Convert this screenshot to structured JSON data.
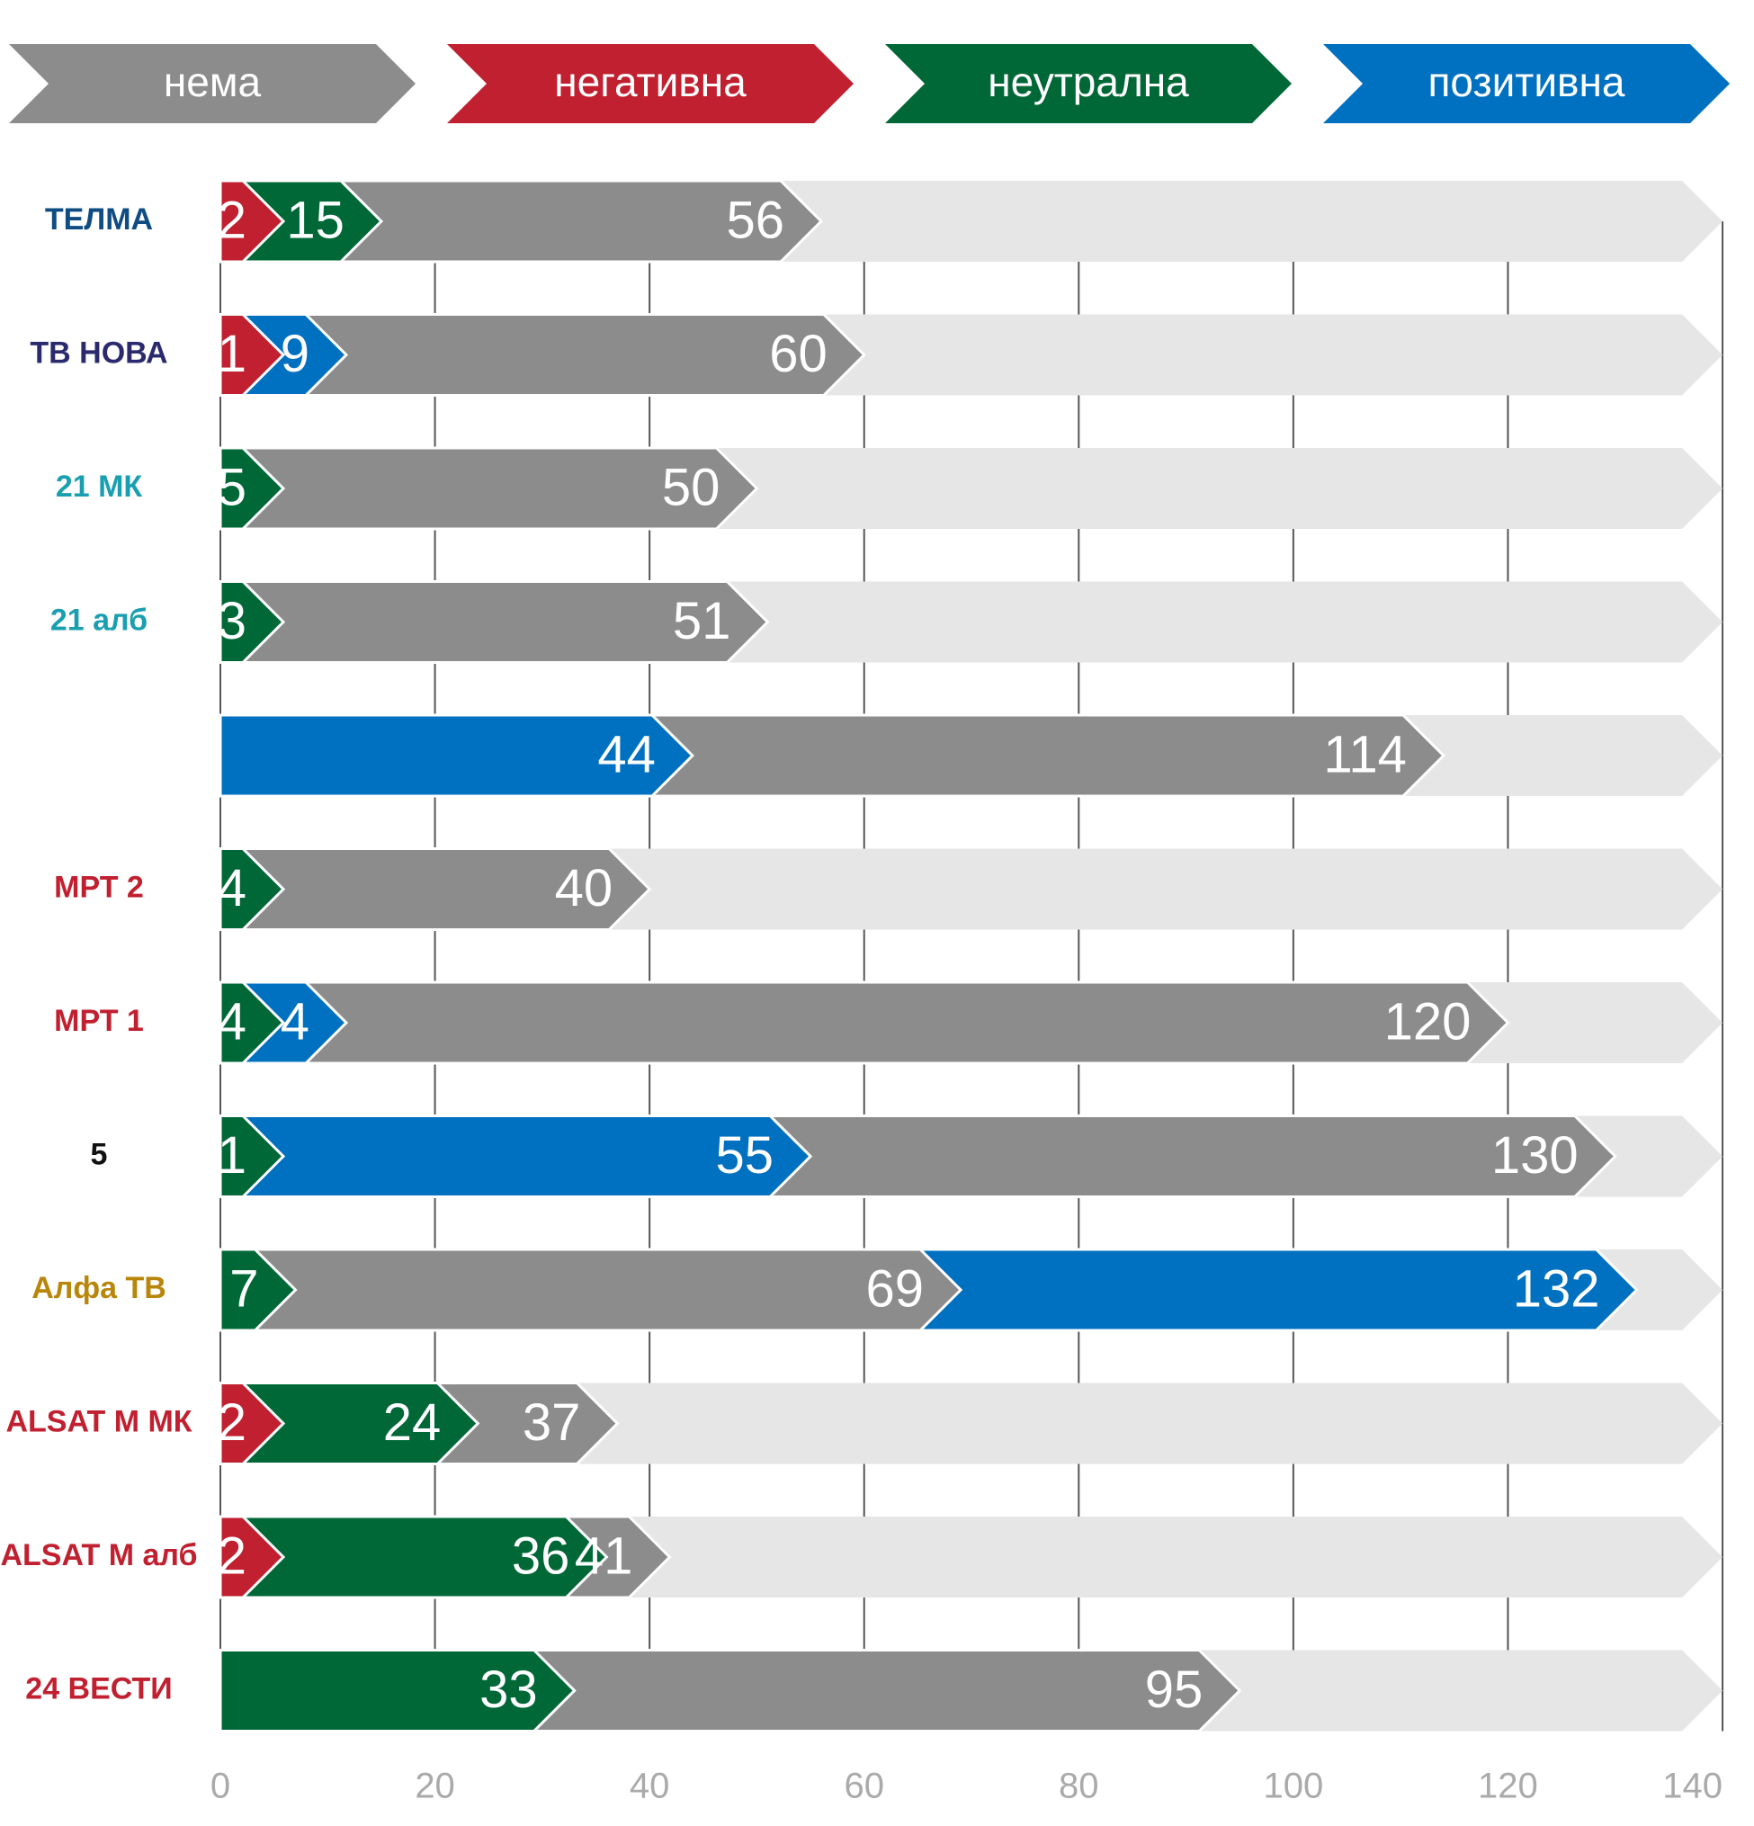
{
  "chart_data": {
    "type": "bar",
    "categories": [
      "ТЕЛМА",
      "ТВ НОВА",
      "21 МК",
      "21 алб",
      null,
      "МРТ 2",
      "МРТ 1",
      "5",
      "Алфа ТВ",
      "ALSAT M МК",
      "ALSAT M алб",
      "24 ВЕСТИ"
    ],
    "series": [
      {
        "name": "нема",
        "color": "#8c8c8c",
        "values": [
          56,
          60,
          50,
          51,
          114,
          40,
          120,
          130,
          69,
          37,
          41,
          95
        ]
      },
      {
        "name": "негативна",
        "color": "#c0202f",
        "values": [
          2,
          1,
          null,
          null,
          null,
          null,
          null,
          null,
          null,
          2,
          2,
          null
        ]
      },
      {
        "name": "неутрална",
        "color": "#006837",
        "values": [
          15,
          null,
          5,
          3,
          null,
          4,
          4,
          1,
          7,
          24,
          36,
          33
        ]
      },
      {
        "name": "позитивна",
        "color": "#0070c0",
        "values": [
          null,
          9,
          null,
          null,
          44,
          null,
          4,
          55,
          132,
          null,
          null,
          null
        ]
      }
    ],
    "xlim": [
      0,
      140
    ],
    "xticks": [
      0,
      20,
      40,
      60,
      80,
      100,
      120,
      140
    ],
    "grid": true
  }
}
